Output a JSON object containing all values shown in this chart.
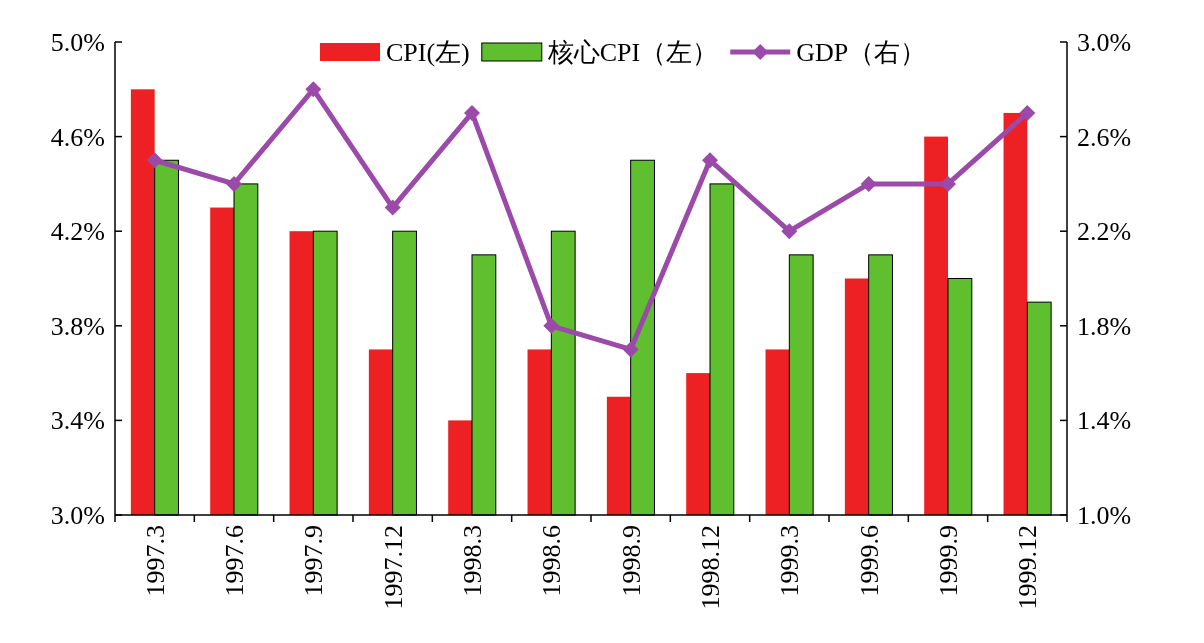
{
  "chart_data": {
    "type": "bar",
    "categories": [
      "1997.3",
      "1997.6",
      "1997.9",
      "1997.12",
      "1998.3",
      "1998.6",
      "1998.9",
      "1998.12",
      "1999.3",
      "1999.6",
      "1999.9",
      "1999.12"
    ],
    "series": [
      {
        "name": "CPI(左)",
        "color": "#ed2024",
        "values": [
          4.8,
          4.3,
          4.2,
          3.7,
          3.4,
          3.7,
          3.5,
          3.6,
          3.7,
          4.0,
          4.6,
          4.7
        ]
      },
      {
        "name": "核心CPI（左）",
        "color": "#5fbf2f",
        "values": [
          4.5,
          4.4,
          4.2,
          4.2,
          4.1,
          4.2,
          4.5,
          4.4,
          4.1,
          4.1,
          4.0,
          3.9
        ]
      },
      {
        "name": "GDP（右）",
        "type": "line",
        "axis": "y2",
        "color": "#9b4aa9",
        "marker": "diamond",
        "values": [
          2.5,
          2.4,
          2.8,
          2.3,
          2.7,
          1.8,
          1.7,
          2.5,
          2.2,
          2.4,
          2.4,
          2.7
        ]
      }
    ],
    "ylim": [
      3.0,
      5.0
    ],
    "yticks": [
      {
        "value": 3.0,
        "label": "3.0%"
      },
      {
        "value": 3.4,
        "label": "3.4%"
      },
      {
        "value": 3.8,
        "label": "3.8%"
      },
      {
        "value": 4.2,
        "label": "4.2%"
      },
      {
        "value": 4.6,
        "label": "4.6%"
      },
      {
        "value": 5.0,
        "label": "5.0%"
      }
    ],
    "y2lim": [
      1.0,
      3.0
    ],
    "y2ticks": [
      {
        "value": 1.0,
        "label": "1.0%"
      },
      {
        "value": 1.4,
        "label": "1.4%"
      },
      {
        "value": 1.8,
        "label": "1.8%"
      },
      {
        "value": 2.2,
        "label": "2.2%"
      },
      {
        "value": 2.6,
        "label": "2.6%"
      },
      {
        "value": 3.0,
        "label": "3.0%"
      }
    ],
    "grid": false,
    "legend": "top right"
  }
}
